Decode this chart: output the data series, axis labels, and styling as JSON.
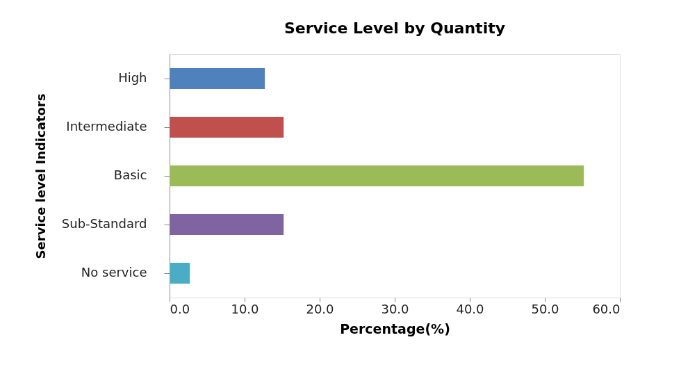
{
  "chart_data": {
    "type": "bar",
    "orientation": "horizontal",
    "title": "Service Level by Quantity",
    "xlabel": "Percentage(%)",
    "ylabel": "Service level Indicators",
    "categories": [
      "High",
      "Intermediate",
      "Basic",
      "Sub-Standard",
      "No service"
    ],
    "values": [
      12.7,
      15.2,
      55.2,
      15.2,
      2.7
    ],
    "colors": [
      "#4f81bd",
      "#c0504d",
      "#9bbb59",
      "#8064a2",
      "#4bacc6"
    ],
    "xlim": [
      0,
      60
    ],
    "xticks": [
      {
        "value": 0,
        "label": "0.0"
      },
      {
        "value": 10,
        "label": "10.0"
      },
      {
        "value": 20,
        "label": "20.0"
      },
      {
        "value": 30,
        "label": "30.0"
      },
      {
        "value": 40,
        "label": "40.0"
      },
      {
        "value": 50,
        "label": "50.0"
      },
      {
        "value": 60,
        "label": "60.0"
      }
    ],
    "grid": false,
    "legend": false
  }
}
